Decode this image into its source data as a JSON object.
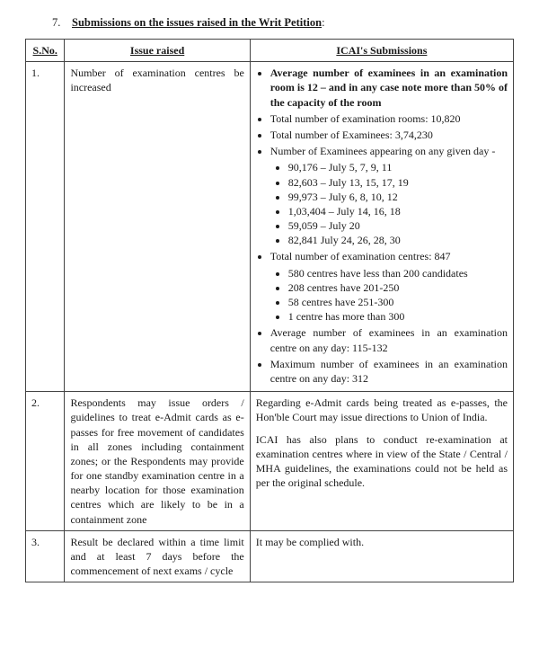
{
  "heading": {
    "number": "7.",
    "text": "Submissions on the issues raised in the Writ Petition",
    "colon": ":"
  },
  "columns": {
    "sno": "S.No.",
    "issue": "Issue raised",
    "sub": "ICAI's Submissions"
  },
  "row1": {
    "sno": "1.",
    "issue": "Number of examination centres be increased",
    "b1": "Average number of examinees in an examination room is 12 – and in any case note more than 50% of the capacity of the room",
    "b2": "Total number of examination rooms: 10,820",
    "b3": "Total number of Examinees: 3,74,230",
    "b4": "Number of Examinees appearing on any given day -",
    "b4a": "90,176 – July 5, 7, 9, 11",
    "b4b": "82,603 – July 13, 15, 17, 19",
    "b4c": "99,973 – July 6, 8, 10, 12",
    "b4d": "1,03,404 – July 14, 16, 18",
    "b4e": "59,059 – July 20",
    "b4f": "82,841 July 24, 26, 28, 30",
    "b5": "Total number of examination centres: 847",
    "b5a": "580 centres have less than 200 candidates",
    "b5b": "208 centres have 201-250",
    "b5c": "58 centres have 251-300",
    "b5d": "1 centre has more than 300",
    "b6": "Average number of examinees in an examination centre on any day: 115-132",
    "b7": "Maximum number of examinees in an examination centre on any day: 312"
  },
  "row2": {
    "sno": "2.",
    "issue": "Respondents may issue orders / guidelines to treat e-Admit cards as e-passes for free movement of candidates in all zones including containment zones; or the Respondents may provide for one standby examination centre in a nearby location for those examination centres which are likely to be in a containment zone",
    "p1": "Regarding e-Admit cards being treated as e-passes, the Hon'ble Court may issue directions to Union of India.",
    "p2": "ICAI has also plans to conduct re-examination at examination centres where in view of the State / Central / MHA guidelines, the examinations could not be held as per the original schedule."
  },
  "row3": {
    "sno": "3.",
    "issue": "Result be declared within a time limit and at least 7 days before the commencement of next exams / cycle",
    "sub": "It may be complied with."
  }
}
